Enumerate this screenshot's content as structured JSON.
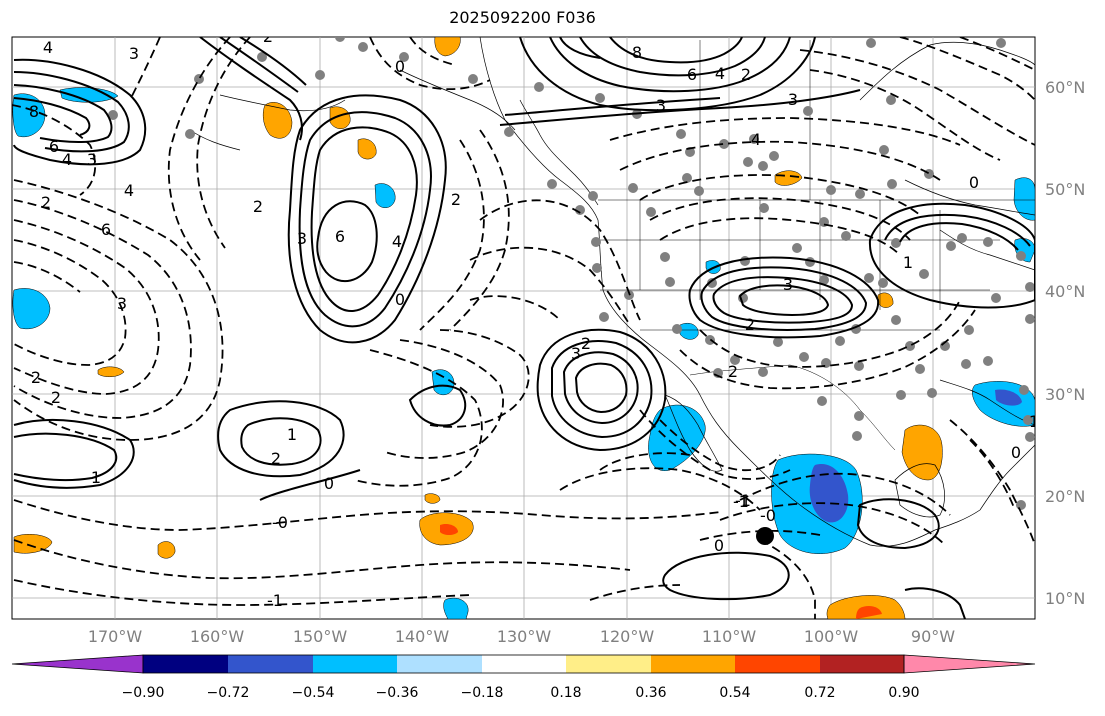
{
  "title": "2025092200 F036",
  "lat_labels": [
    "60°N",
    "50°N",
    "40°N",
    "30°N",
    "20°N",
    "10°N"
  ],
  "lon_labels": [
    "170°W",
    "160°W",
    "150°W",
    "140°W",
    "130°W",
    "120°W",
    "110°W",
    "100°W",
    "90°W"
  ],
  "colorbar": {
    "ticks": [
      "−0.90",
      "−0.72",
      "−0.54",
      "−0.36",
      "−0.18",
      "0.18",
      "0.36",
      "0.54",
      "0.72",
      "0.90"
    ],
    "colors": [
      "#9933cc",
      "#000080",
      "#3355cc",
      "#00bfff",
      "#aee0ff",
      "#ffffff",
      "#ffee88",
      "#ffa500",
      "#ff4500",
      "#b22222",
      "#ff88aa"
    ]
  },
  "contour_labels": [
    {
      "text": "4"
    },
    {
      "text": "3"
    },
    {
      "text": "8"
    },
    {
      "text": "6"
    },
    {
      "text": "4"
    },
    {
      "text": "3"
    },
    {
      "text": "2"
    },
    {
      "text": "4"
    },
    {
      "text": "2"
    },
    {
      "text": "6"
    },
    {
      "text": "3"
    },
    {
      "text": "2"
    },
    {
      "text": "2"
    },
    {
      "text": "1"
    },
    {
      "text": "2"
    },
    {
      "text": "0"
    },
    {
      "text": "-0"
    },
    {
      "text": "1"
    },
    {
      "text": "-1"
    },
    {
      "text": "0"
    },
    {
      "text": "-1"
    },
    {
      "text": "6"
    },
    {
      "text": "4"
    },
    {
      "text": "2"
    },
    {
      "text": "0"
    },
    {
      "text": "3"
    },
    {
      "text": "2"
    },
    {
      "text": "8"
    },
    {
      "text": "6"
    },
    {
      "text": "4"
    },
    {
      "text": "2"
    },
    {
      "text": "3"
    },
    {
      "text": "4"
    },
    {
      "text": "3"
    },
    {
      "text": "3"
    },
    {
      "text": "2"
    },
    {
      "text": "0"
    },
    {
      "text": "3"
    },
    {
      "text": "2"
    },
    {
      "text": "1"
    },
    {
      "text": "-1"
    },
    {
      "text": "-0"
    },
    {
      "text": "0"
    },
    {
      "text": "1"
    },
    {
      "text": "0"
    },
    {
      "text": "2"
    }
  ]
}
